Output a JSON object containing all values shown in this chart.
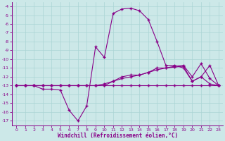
{
  "xlabel": "Windchill (Refroidissement éolien,°C)",
  "xlim": [
    -0.5,
    23.5
  ],
  "ylim": [
    -17.5,
    -3.5
  ],
  "yticks": [
    -17,
    -16,
    -15,
    -14,
    -13,
    -12,
    -11,
    -10,
    -9,
    -8,
    -7,
    -6,
    -5,
    -4
  ],
  "xticks": [
    0,
    1,
    2,
    3,
    4,
    5,
    6,
    7,
    8,
    9,
    10,
    11,
    12,
    13,
    14,
    15,
    16,
    17,
    18,
    19,
    20,
    21,
    22,
    23
  ],
  "bg_color": "#cce8e8",
  "grid_color": "#aad4d4",
  "line_color": "#880088",
  "line1_y": [
    -13,
    -13,
    -13,
    -13.4,
    -13.4,
    -13.5,
    -15.8,
    -17,
    -15.3,
    -8.6,
    -9.8,
    -4.8,
    -4.3,
    -4.2,
    -4.5,
    -5.5,
    -8,
    -10.7,
    -10.7,
    -11,
    -12.5,
    -12,
    -10.7,
    -13
  ],
  "line2_y": [
    -13,
    -13,
    -13,
    -13,
    -13,
    -13,
    -13,
    -13,
    -13,
    -13,
    -13,
    -12.5,
    -12,
    -11.8,
    -11.8,
    -11.5,
    -11,
    -11,
    -10.8,
    -10.7,
    -12,
    -10.5,
    -12.2,
    -13
  ],
  "line3_y": [
    -13,
    -13,
    -13,
    -13,
    -13,
    -13,
    -13,
    -13,
    -13,
    -13,
    -12.8,
    -12.5,
    -12.2,
    -12,
    -11.8,
    -11.5,
    -11.2,
    -11,
    -10.9,
    -10.8,
    -12.5,
    -12,
    -12.8,
    -13
  ],
  "line4_y": [
    -13,
    -13,
    -13,
    -13,
    -13,
    -13,
    -13,
    -13,
    -13,
    -13,
    -13,
    -13,
    -13,
    -13,
    -13,
    -13,
    -13,
    -13,
    -13,
    -13,
    -13,
    -13,
    -13,
    -13
  ]
}
